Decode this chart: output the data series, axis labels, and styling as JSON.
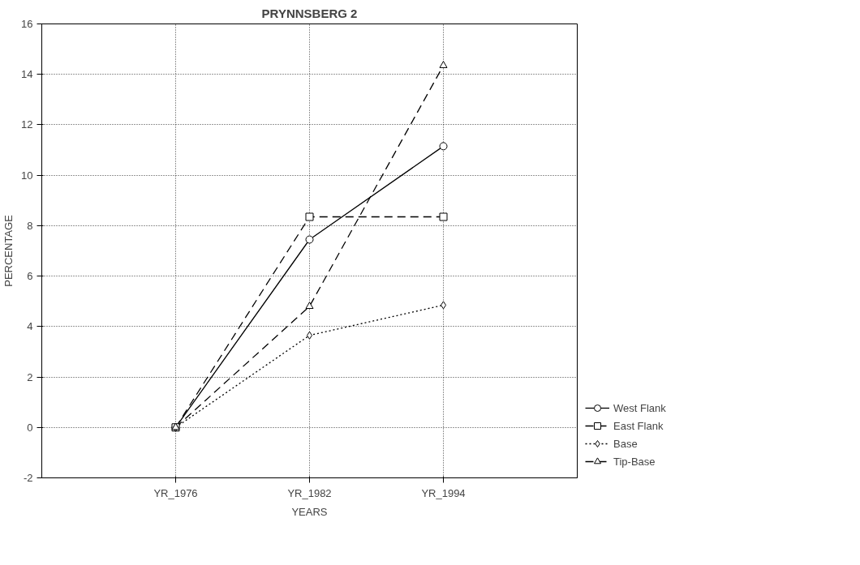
{
  "chart_data": {
    "type": "line",
    "title": "PRYNNSBERG 2",
    "xlabel": "YEARS",
    "ylabel": "PERCENTAGE",
    "categories": [
      "YR_1976",
      "YR_1982",
      "YR_1994"
    ],
    "ylim": [
      -2,
      16
    ],
    "yticks": [
      -2,
      0,
      2,
      4,
      6,
      8,
      10,
      12,
      14,
      16
    ],
    "grid": true,
    "legend": "bottom right",
    "series": [
      {
        "name": "West Flank",
        "color": "#000000",
        "marker": "circle",
        "line_style": "solid",
        "values": [
          0,
          7.45,
          11.15
        ]
      },
      {
        "name": "East Flank",
        "color": "#000000",
        "marker": "square",
        "line_style": "dashed",
        "values": [
          0,
          8.35,
          8.35
        ]
      },
      {
        "name": "Base",
        "color": "#000000",
        "marker": "diamond",
        "line_style": "dotted",
        "values": [
          0,
          3.65,
          4.85
        ]
      },
      {
        "name": "Tip-Base",
        "color": "#000000",
        "marker": "triangle",
        "line_style": "dashed",
        "values": [
          0,
          4.8,
          14.35
        ]
      }
    ]
  }
}
